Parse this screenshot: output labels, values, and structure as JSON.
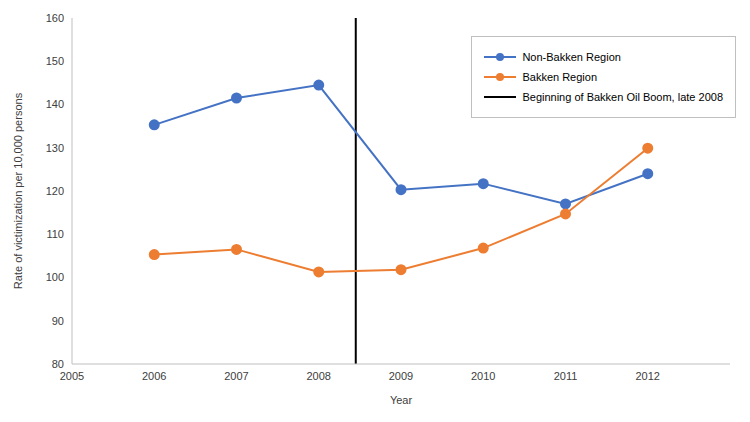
{
  "chart_data": {
    "type": "line",
    "x_label": "Year",
    "y_label": "Rate of victimization per 10,000 persons",
    "x": [
      2006,
      2007,
      2008,
      2009,
      2010,
      2011,
      2012
    ],
    "series": [
      {
        "name": "Non-Bakken Region",
        "color": "#4472c4",
        "marker": "circle",
        "values": [
          135.3,
          141.5,
          144.5,
          120.3,
          121.7,
          117.0,
          124.0
        ]
      },
      {
        "name": "Bakken Region",
        "color": "#ed7d31",
        "marker": "circle",
        "values": [
          105.3,
          106.5,
          101.3,
          101.8,
          106.8,
          114.7,
          129.9
        ]
      }
    ],
    "vline": {
      "x": 2008.45,
      "label": "Beginning of Bakken Oil Boom, late 2008",
      "color": "#000000"
    },
    "xlim": [
      2005,
      2013
    ],
    "xticks": [
      2005,
      2006,
      2007,
      2008,
      2009,
      2010,
      2011,
      2012
    ],
    "ylim": [
      80,
      160
    ],
    "yticks": [
      80,
      90,
      100,
      110,
      120,
      130,
      140,
      150,
      160
    ],
    "grid": false,
    "legend": "upper right"
  }
}
